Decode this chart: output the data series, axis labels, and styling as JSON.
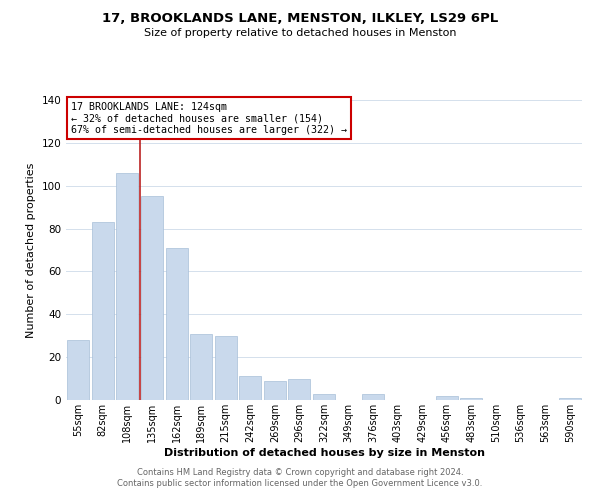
{
  "title": "17, BROOKLANDS LANE, MENSTON, ILKLEY, LS29 6PL",
  "subtitle": "Size of property relative to detached houses in Menston",
  "xlabel": "Distribution of detached houses by size in Menston",
  "ylabel": "Number of detached properties",
  "categories": [
    "55sqm",
    "82sqm",
    "108sqm",
    "135sqm",
    "162sqm",
    "189sqm",
    "215sqm",
    "242sqm",
    "269sqm",
    "296sqm",
    "322sqm",
    "349sqm",
    "376sqm",
    "403sqm",
    "429sqm",
    "456sqm",
    "483sqm",
    "510sqm",
    "536sqm",
    "563sqm",
    "590sqm"
  ],
  "values": [
    28,
    83,
    106,
    95,
    71,
    31,
    30,
    11,
    9,
    10,
    3,
    0,
    3,
    0,
    0,
    2,
    1,
    0,
    0,
    0,
    1
  ],
  "bar_color": "#c9d9ec",
  "bar_edge_color": "#a8bfd8",
  "marker_line_color": "#bb2222",
  "ylim": [
    0,
    140
  ],
  "yticks": [
    0,
    20,
    40,
    60,
    80,
    100,
    120,
    140
  ],
  "annotation_title": "17 BROOKLANDS LANE: 124sqm",
  "annotation_line1": "← 32% of detached houses are smaller (154)",
  "annotation_line2": "67% of semi-detached houses are larger (322) →",
  "annotation_box_color": "#ffffff",
  "annotation_box_edge": "#cc0000",
  "footer_line1": "Contains HM Land Registry data © Crown copyright and database right 2024.",
  "footer_line2": "Contains public sector information licensed under the Open Government Licence v3.0.",
  "background_color": "#ffffff",
  "grid_color": "#d4e0ec"
}
